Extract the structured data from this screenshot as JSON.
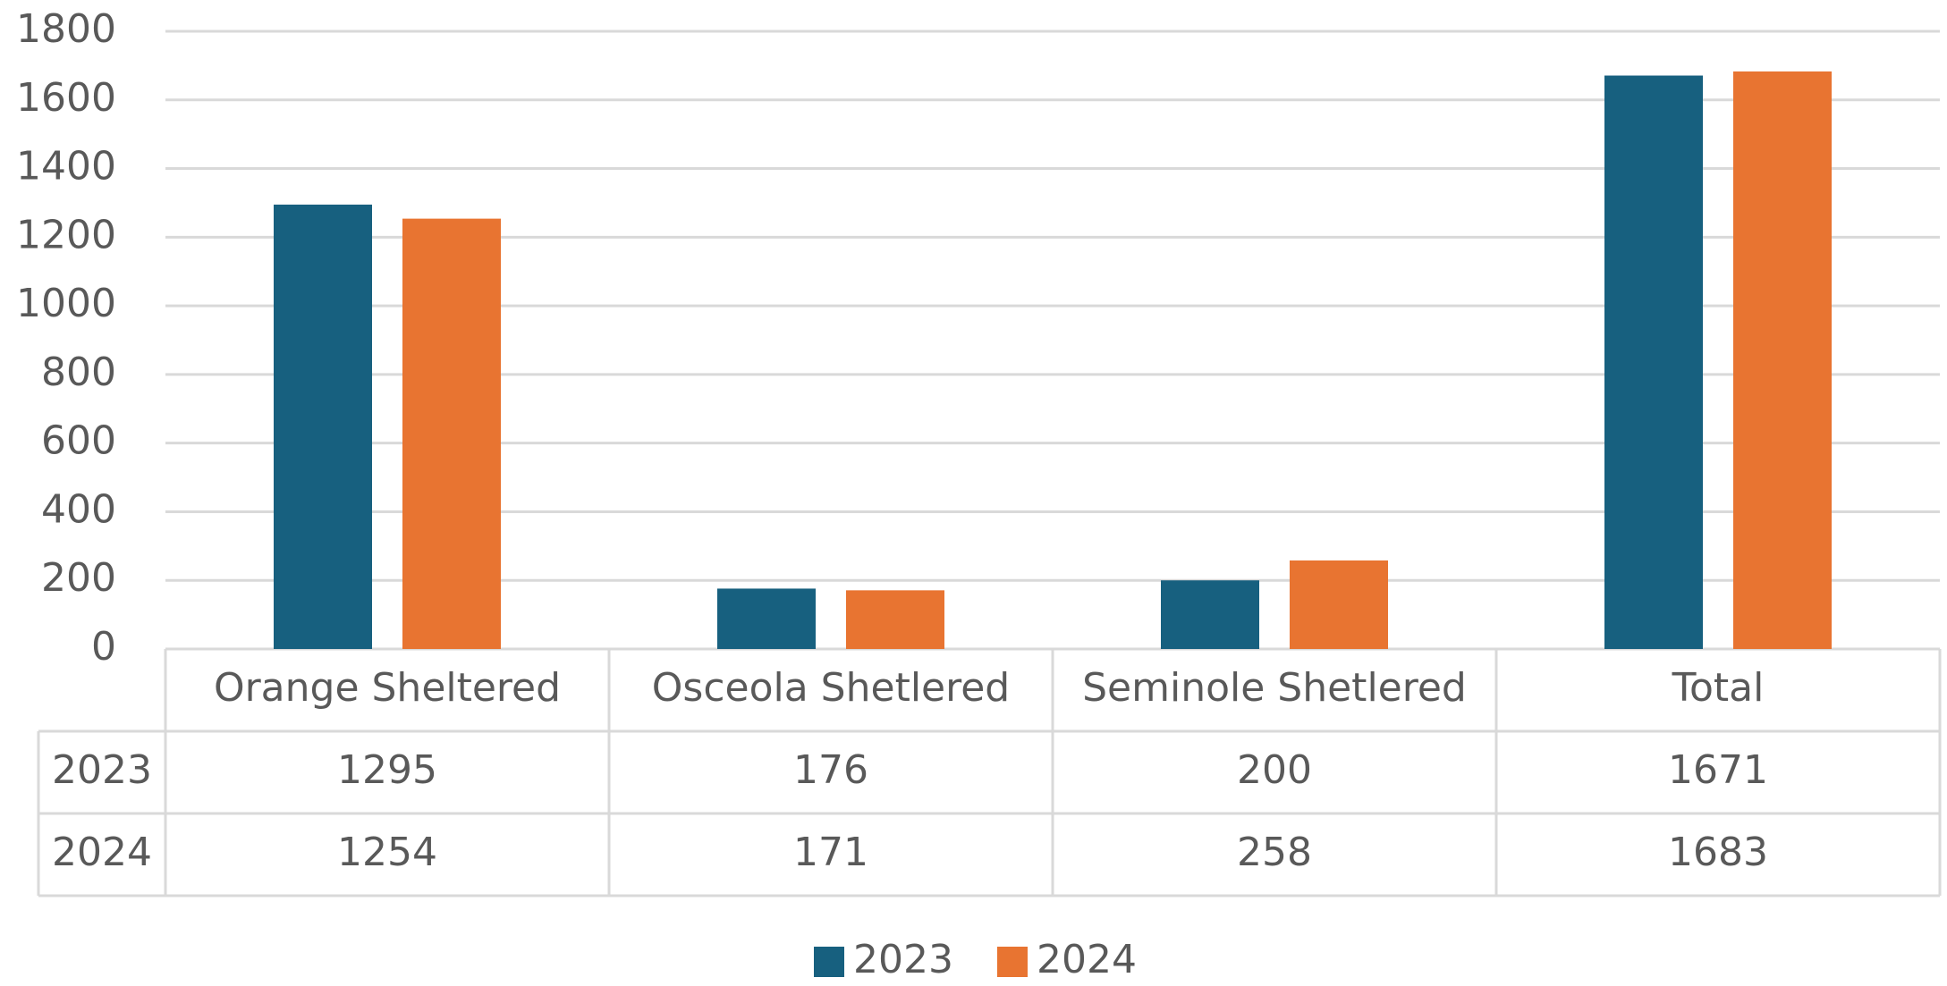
{
  "chart_data": {
    "type": "bar",
    "categories": [
      "Orange Sheltered",
      "Osceola Shetlered",
      "Seminole Shetlered",
      "Total"
    ],
    "series": [
      {
        "name": "2023",
        "color": "#17607f",
        "values": [
          1295,
          176,
          200,
          1671
        ]
      },
      {
        "name": "2024",
        "color": "#e87431",
        "values": [
          1254,
          171,
          258,
          1683
        ]
      }
    ],
    "ylim": [
      0,
      1800
    ],
    "yticks": [
      0,
      200,
      400,
      600,
      800,
      1000,
      1200,
      1400,
      1600,
      1800
    ],
    "grid": true,
    "legend": "bottom",
    "data_table": true
  }
}
